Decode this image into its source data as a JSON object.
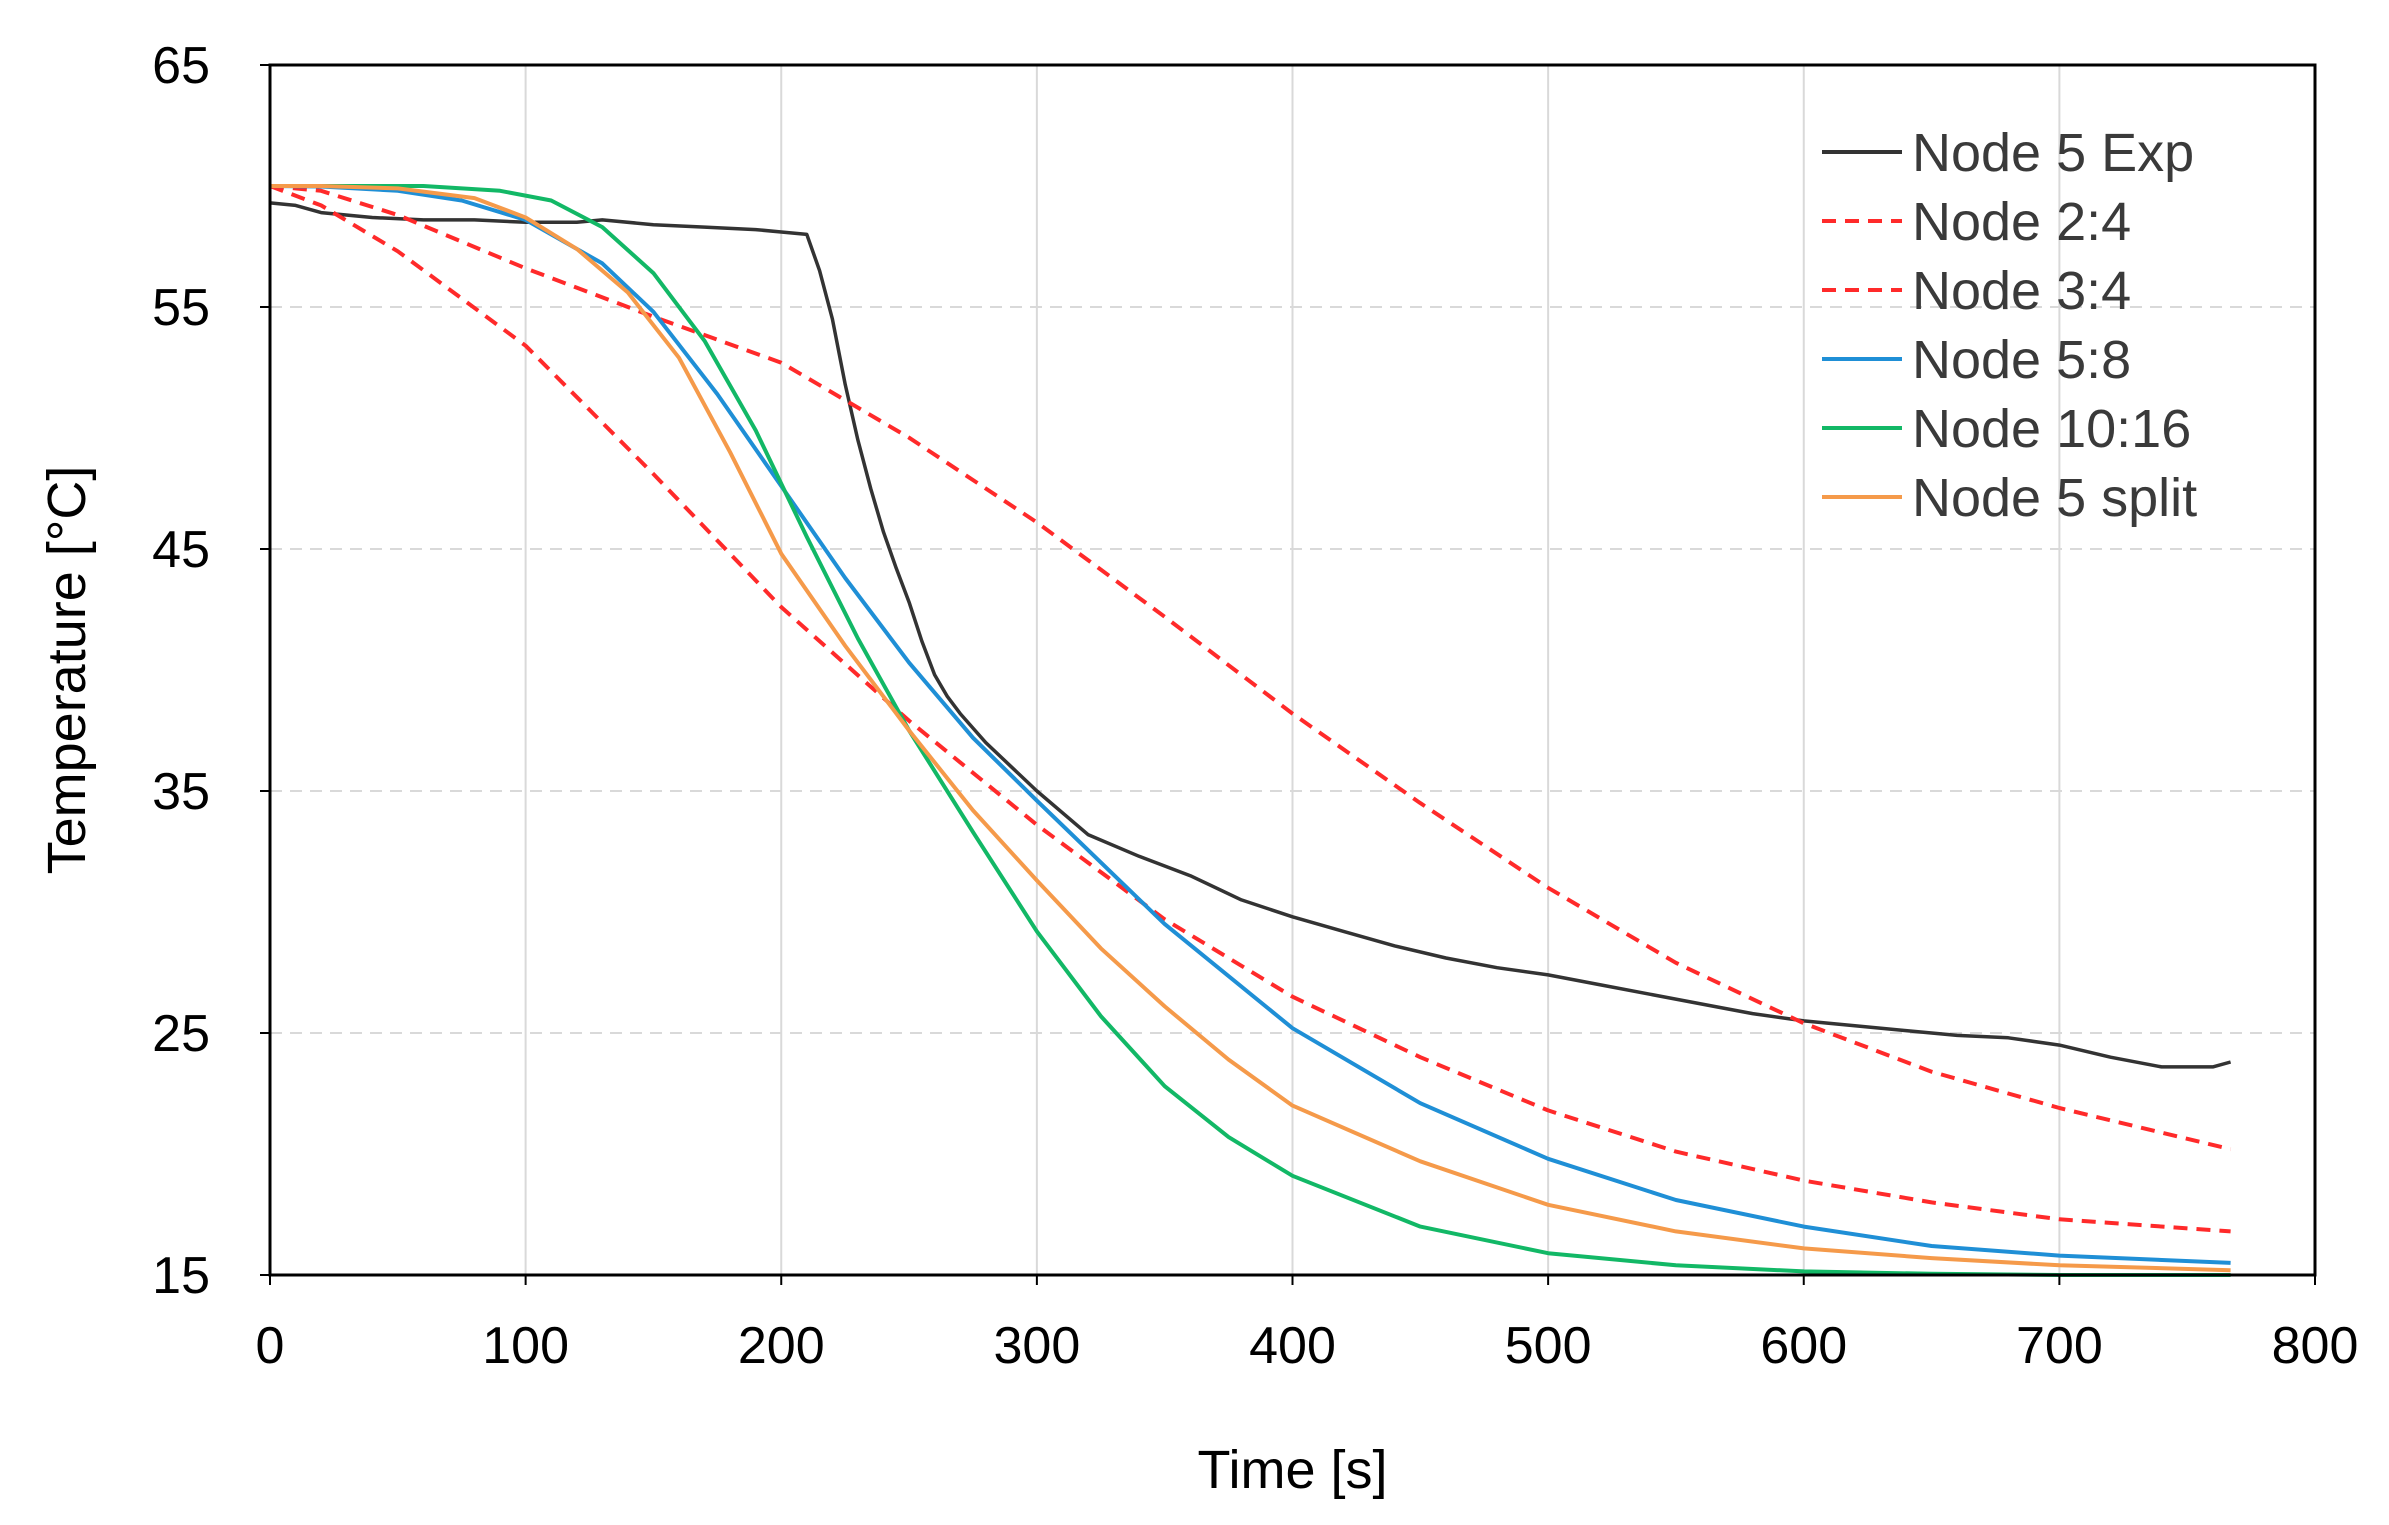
{
  "chart_data": {
    "type": "line",
    "title": "",
    "xlabel": "Time [s]",
    "ylabel": "Temperature [°C]",
    "xlim": [
      0,
      800
    ],
    "ylim": [
      15,
      65
    ],
    "x_ticks": [
      0,
      100,
      200,
      300,
      400,
      500,
      600,
      700,
      800
    ],
    "y_ticks": [
      15,
      25,
      35,
      45,
      55,
      65
    ],
    "grid": true,
    "legend_position": "top-right",
    "colors": {
      "Node 5 Exp": "#333333",
      "Node 2:4": "#ff2a2a",
      "Node 3:4": "#ff2a2a",
      "Node 5:8": "#1f8fd6",
      "Node 10:16": "#12b866",
      "Node 5 split": "#f59a4a"
    },
    "series": [
      {
        "name": "Node 5 Exp",
        "style": "solid",
        "x": [
          0,
          10,
          20,
          40,
          60,
          80,
          100,
          120,
          130,
          150,
          170,
          190,
          200,
          210,
          215,
          220,
          225,
          230,
          235,
          240,
          245,
          250,
          255,
          260,
          265,
          270,
          280,
          290,
          300,
          320,
          340,
          360,
          380,
          400,
          420,
          440,
          460,
          480,
          500,
          520,
          540,
          560,
          580,
          600,
          620,
          640,
          660,
          680,
          700,
          720,
          740,
          760,
          767
        ],
        "y": [
          59.3,
          59.2,
          58.9,
          58.7,
          58.6,
          58.6,
          58.5,
          58.5,
          58.6,
          58.4,
          58.3,
          58.2,
          58.1,
          58.0,
          56.5,
          54.5,
          51.8,
          49.5,
          47.5,
          45.7,
          44.2,
          42.8,
          41.2,
          39.8,
          38.9,
          38.2,
          37.0,
          36.0,
          35.0,
          33.2,
          32.3,
          31.5,
          30.5,
          29.8,
          29.2,
          28.6,
          28.1,
          27.7,
          27.4,
          27.0,
          26.6,
          26.2,
          25.8,
          25.5,
          25.3,
          25.1,
          24.9,
          24.8,
          24.5,
          24.0,
          23.6,
          23.6,
          23.8
        ]
      },
      {
        "name": "Node 2:4",
        "style": "dashed",
        "x": [
          0,
          20,
          50,
          100,
          150,
          200,
          250,
          300,
          350,
          400,
          450,
          500,
          550,
          600,
          650,
          700,
          767
        ],
        "y": [
          60.0,
          59.8,
          58.8,
          56.6,
          54.6,
          52.7,
          49.6,
          46.1,
          42.2,
          38.2,
          34.5,
          31.0,
          27.9,
          25.4,
          23.4,
          21.9,
          20.2
        ]
      },
      {
        "name": "Node 3:4",
        "style": "dashed",
        "x": [
          0,
          20,
          50,
          100,
          150,
          200,
          250,
          300,
          350,
          400,
          450,
          500,
          550,
          600,
          650,
          700,
          767
        ],
        "y": [
          60.0,
          59.2,
          57.3,
          53.4,
          48.1,
          42.6,
          37.9,
          33.6,
          29.7,
          26.5,
          24.0,
          21.8,
          20.1,
          18.9,
          18.0,
          17.3,
          16.8
        ]
      },
      {
        "name": "Node 5:8",
        "style": "solid",
        "x": [
          0,
          20,
          50,
          75,
          100,
          130,
          150,
          175,
          200,
          225,
          250,
          275,
          300,
          350,
          400,
          450,
          500,
          550,
          600,
          650,
          700,
          767
        ],
        "y": [
          60.0,
          59.98,
          59.8,
          59.4,
          58.6,
          56.8,
          54.8,
          51.4,
          47.6,
          43.8,
          40.3,
          37.2,
          34.6,
          29.5,
          25.2,
          22.1,
          19.8,
          18.1,
          17.0,
          16.2,
          15.8,
          15.5
        ]
      },
      {
        "name": "Node 10:16",
        "style": "solid",
        "x": [
          0,
          30,
          60,
          90,
          110,
          130,
          150,
          170,
          190,
          210,
          230,
          250,
          275,
          300,
          325,
          350,
          375,
          400,
          450,
          500,
          550,
          600,
          650,
          700,
          767
        ],
        "y": [
          60.0,
          60.0,
          60.0,
          59.8,
          59.4,
          58.3,
          56.4,
          53.6,
          49.9,
          45.5,
          41.3,
          37.5,
          33.3,
          29.2,
          25.7,
          22.8,
          20.7,
          19.1,
          17.0,
          15.9,
          15.4,
          15.15,
          15.05,
          15.0,
          15.0
        ]
      },
      {
        "name": "Node 5 split",
        "style": "solid",
        "x": [
          0,
          20,
          50,
          80,
          100,
          120,
          140,
          160,
          180,
          200,
          225,
          250,
          275,
          300,
          325,
          350,
          375,
          400,
          450,
          500,
          550,
          600,
          650,
          700,
          767
        ],
        "y": [
          60.0,
          60.0,
          59.9,
          59.5,
          58.7,
          57.4,
          55.6,
          52.9,
          49.0,
          44.8,
          41.0,
          37.5,
          34.2,
          31.3,
          28.5,
          26.1,
          23.9,
          22.0,
          19.7,
          17.9,
          16.8,
          16.1,
          15.7,
          15.4,
          15.2
        ]
      }
    ]
  }
}
